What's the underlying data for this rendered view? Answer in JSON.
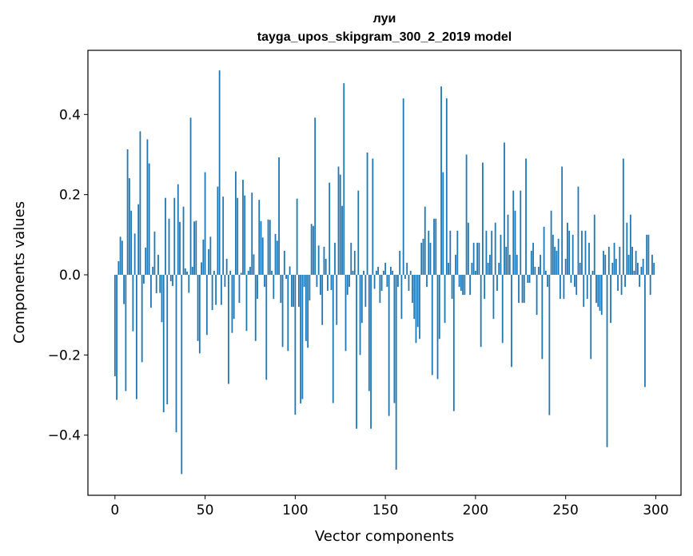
{
  "chart_data": {
    "type": "bar",
    "title": "луи",
    "subtitle": "tayga_upos_skipgram_300_2_2019 model",
    "xlabel": "Vector components",
    "ylabel": "Components values",
    "xlim": [
      -15,
      314
    ],
    "ylim": [
      -0.55,
      0.56
    ],
    "x_ticks": [
      0,
      50,
      100,
      150,
      200,
      250,
      300
    ],
    "x_tick_labels": [
      "0",
      "50",
      "100",
      "150",
      "200",
      "250",
      "300"
    ],
    "y_ticks": [
      -0.4,
      -0.2,
      0.0,
      0.2,
      0.4
    ],
    "y_tick_labels": [
      "−0.4",
      "−0.2",
      "0.0",
      "0.2",
      "0.4"
    ],
    "bar_color": "#1f77b4",
    "grid": false,
    "values": [
      -0.253,
      -0.312,
      0.034,
      0.095,
      0.085,
      -0.073,
      -0.29,
      0.313,
      0.241,
      0.16,
      -0.141,
      0.103,
      -0.31,
      0.176,
      0.358,
      -0.218,
      -0.022,
      0.068,
      0.338,
      0.278,
      -0.082,
      0.02,
      0.108,
      -0.046,
      0.05,
      -0.045,
      -0.118,
      -0.343,
      0.192,
      -0.323,
      0.14,
      -0.016,
      -0.028,
      0.192,
      -0.393,
      0.226,
      0.132,
      -0.497,
      0.17,
      0.016,
      0.008,
      -0.045,
      0.392,
      0.02,
      0.133,
      0.135,
      -0.165,
      -0.196,
      0.031,
      0.088,
      0.256,
      -0.15,
      0.064,
      0.095,
      -0.088,
      0.01,
      -0.075,
      0.22,
      0.51,
      -0.075,
      0.195,
      -0.03,
      0.04,
      -0.272,
      0.01,
      -0.145,
      -0.11,
      0.258,
      0.192,
      -0.07,
      0.005,
      0.237,
      0.198,
      -0.14,
      0.01,
      0.02,
      0.205,
      0.051,
      -0.165,
      -0.06,
      0.187,
      0.134,
      0.093,
      -0.03,
      -0.262,
      0.138,
      0.137,
      0.01,
      -0.06,
      0.102,
      0.085,
      0.293,
      -0.07,
      -0.18,
      0.06,
      -0.01,
      -0.19,
      0.021,
      -0.08,
      -0.08,
      -0.349,
      0.19,
      -0.08,
      -0.321,
      -0.31,
      -0.03,
      -0.165,
      -0.182,
      -0.064,
      0.127,
      0.122,
      0.392,
      -0.03,
      0.073,
      -0.05,
      -0.125,
      0.07,
      0.04,
      -0.04,
      0.23,
      -0.038,
      -0.32,
      0.08,
      -0.125,
      0.27,
      0.25,
      0.172,
      0.478,
      -0.19,
      -0.05,
      -0.03,
      0.08,
      0.01,
      0.06,
      -0.384,
      0.21,
      -0.2,
      -0.12,
      0.01,
      -0.08,
      0.305,
      -0.29,
      -0.384,
      0.29,
      -0.035,
      0.01,
      0.02,
      -0.07,
      -0.04,
      0.01,
      0.03,
      -0.03,
      -0.352,
      0.02,
      0.01,
      -0.32,
      -0.486,
      -0.03,
      0.06,
      -0.11,
      0.44,
      -0.01,
      0.03,
      -0.04,
      0.01,
      -0.07,
      -0.11,
      -0.17,
      -0.13,
      -0.16,
      0.08,
      0.09,
      0.17,
      -0.03,
      0.11,
      0.08,
      -0.25,
      0.14,
      0.14,
      -0.26,
      -0.16,
      0.47,
      0.256,
      -0.12,
      0.44,
      0.03,
      0.11,
      -0.06,
      -0.34,
      0.05,
      0.11,
      -0.03,
      -0.04,
      -0.05,
      -0.05,
      0.3,
      0.13,
      -0.05,
      0.03,
      0.08,
      0.01,
      0.08,
      0.08,
      -0.18,
      0.28,
      -0.06,
      0.11,
      0.03,
      0.05,
      0.11,
      -0.11,
      0.13,
      -0.04,
      0.03,
      0.1,
      -0.17,
      0.33,
      0.07,
      0.15,
      0.05,
      -0.23,
      0.21,
      0.16,
      0.05,
      -0.07,
      0.21,
      -0.07,
      -0.07,
      0.29,
      -0.02,
      -0.02,
      0.06,
      0.08,
      0.02,
      -0.1,
      0.02,
      0.05,
      -0.21,
      0.12,
      0.01,
      -0.03,
      -0.35,
      0.16,
      0.1,
      0.07,
      0.06,
      0.09,
      -0.06,
      0.27,
      -0.06,
      0.04,
      0.13,
      0.11,
      -0.02,
      0.1,
      -0.03,
      -0.05,
      0.22,
      0.03,
      0.11,
      -0.08,
      0.11,
      -0.06,
      0.08,
      -0.21,
      0.01,
      0.15,
      -0.07,
      -0.08,
      -0.09,
      -0.1,
      0.06,
      0.05,
      -0.43,
      0.07,
      -0.12,
      0.03,
      0.08,
      0.04,
      -0.04,
      0.07,
      -0.05,
      0.29,
      -0.03,
      0.13,
      0.05,
      0.15,
      0.07,
      0.01,
      0.06,
      0.03,
      -0.03,
      0.02,
      0.04,
      -0.28,
      0.1,
      0.1,
      -0.05,
      0.05,
      0.03
    ]
  }
}
